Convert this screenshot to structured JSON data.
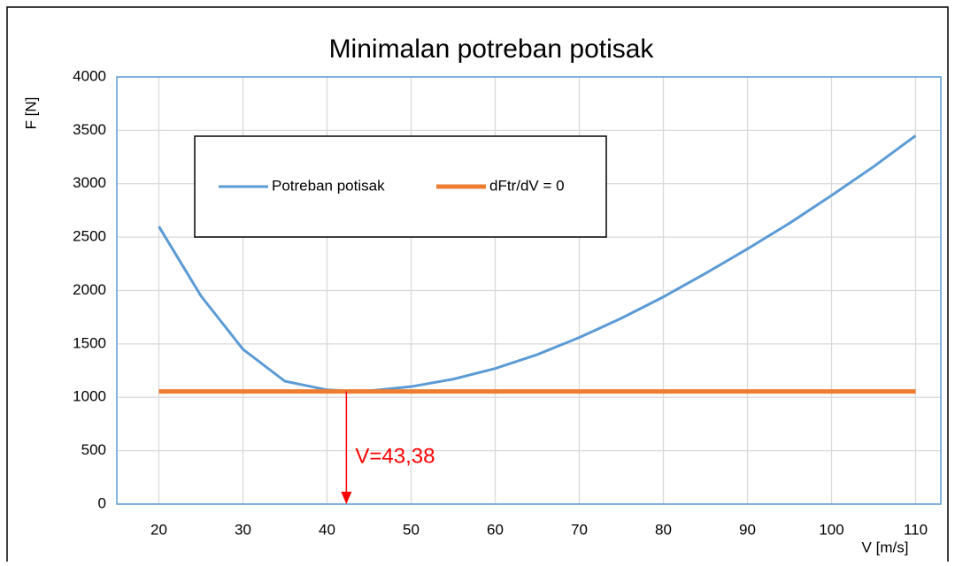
{
  "chart_data": {
    "type": "line",
    "title": "Minimalan potreban potisak",
    "ylabel": "F [N]",
    "xlabel": "V [m/s]",
    "xlim": [
      15,
      113
    ],
    "xticks": [
      20,
      30,
      40,
      50,
      60,
      70,
      80,
      90,
      100,
      110
    ],
    "ylim": [
      0,
      4000
    ],
    "yticks": [
      0,
      500,
      1000,
      1500,
      2000,
      2500,
      3000,
      3500,
      4000
    ],
    "grid": true,
    "series": [
      {
        "name": "Potreban potisak",
        "color": "#5b9bd5",
        "x": [
          20,
          25,
          30,
          35,
          40,
          43.38,
          45,
          50,
          55,
          60,
          65,
          70,
          75,
          80,
          85,
          90,
          95,
          100,
          105,
          110
        ],
        "values": [
          2600,
          1950,
          1450,
          1150,
          1070,
          1055,
          1060,
          1100,
          1170,
          1270,
          1400,
          1560,
          1740,
          1940,
          2160,
          2390,
          2630,
          2890,
          3160,
          3450
        ]
      },
      {
        "name": "dFtr/dV = 0",
        "color": "#ed7d31",
        "x": [
          20,
          110
        ],
        "values": [
          1055,
          1055
        ]
      }
    ],
    "annotation": {
      "text": "V=43,38",
      "x": 42.3,
      "y": 1055,
      "color": "#ff0000"
    }
  }
}
